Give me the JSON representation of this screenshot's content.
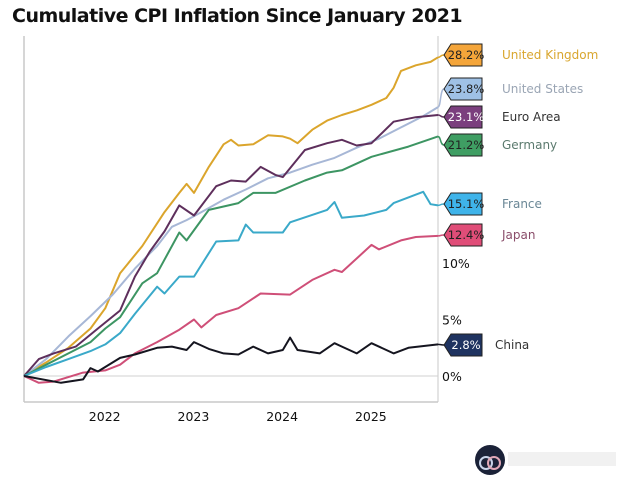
{
  "chart_data": {
    "type": "line",
    "title": "Cumulative CPI Inflation Since January 2021",
    "xlabel": "",
    "ylabel": "",
    "xlim": [
      "2021-01",
      "2025-09"
    ],
    "ylim": [
      -2.3,
      29.5
    ],
    "x_ticks": [
      "2022",
      "2023",
      "2024",
      "2025"
    ],
    "y_ticks": [
      {
        "value": 0,
        "label": "0%"
      },
      {
        "value": 5,
        "label": "5%"
      },
      {
        "value": 10,
        "label": "10%"
      }
    ],
    "grid": false,
    "legend_placement": "right, end-of-line labels",
    "series": [
      {
        "name": "United Kingdom",
        "end_label": "28.2%",
        "color": "#dba52c",
        "box_color": "#f4a53a",
        "text_color": "#d9a62e",
        "points": [
          [
            "2021-01",
            0
          ],
          [
            "2021-04",
            1.2
          ],
          [
            "2021-07",
            2.5
          ],
          [
            "2021-10",
            4.2
          ],
          [
            "2021-12",
            6.0
          ],
          [
            "2022-02",
            9.1
          ],
          [
            "2022-05",
            11.5
          ],
          [
            "2022-08",
            14.5
          ],
          [
            "2022-10",
            16.2
          ],
          [
            "2022-11",
            17.0
          ],
          [
            "2022-12",
            16.2
          ],
          [
            "2023-02",
            18.5
          ],
          [
            "2023-04",
            20.5
          ],
          [
            "2023-05",
            20.9
          ],
          [
            "2023-06",
            20.4
          ],
          [
            "2023-08",
            20.5
          ],
          [
            "2023-10",
            21.3
          ],
          [
            "2023-12",
            21.2
          ],
          [
            "2024-01",
            21.0
          ],
          [
            "2024-02",
            20.6
          ],
          [
            "2024-04",
            21.8
          ],
          [
            "2024-06",
            22.6
          ],
          [
            "2024-08",
            23.1
          ],
          [
            "2024-10",
            23.5
          ],
          [
            "2024-12",
            24.0
          ],
          [
            "2025-02",
            24.6
          ],
          [
            "2025-03",
            25.5
          ],
          [
            "2025-04",
            27.0
          ],
          [
            "2025-06",
            27.5
          ],
          [
            "2025-08",
            27.8
          ],
          [
            "2025-09",
            28.2
          ]
        ]
      },
      {
        "name": "United States",
        "end_label": "23.8%",
        "color": "#a7b7d6",
        "box_color": "#9fc1e6",
        "text_color": "#9aa5b4",
        "points": [
          [
            "2021-01",
            0
          ],
          [
            "2021-04",
            1.5
          ],
          [
            "2021-07",
            3.5
          ],
          [
            "2021-10",
            5.3
          ],
          [
            "2022-01",
            7.2
          ],
          [
            "2022-04",
            9.5
          ],
          [
            "2022-07",
            11.5
          ],
          [
            "2022-09",
            13.2
          ],
          [
            "2022-11",
            13.8
          ],
          [
            "2023-01",
            14.5
          ],
          [
            "2023-04",
            15.6
          ],
          [
            "2023-07",
            16.5
          ],
          [
            "2023-10",
            17.5
          ],
          [
            "2024-01",
            18.0
          ],
          [
            "2024-04",
            18.7
          ],
          [
            "2024-07",
            19.3
          ],
          [
            "2024-10",
            20.2
          ],
          [
            "2025-01",
            21.0
          ],
          [
            "2025-04",
            22.0
          ],
          [
            "2025-07",
            23.0
          ],
          [
            "2025-09",
            23.8
          ]
        ]
      },
      {
        "name": "Euro Area",
        "end_label": "23.1%",
        "color": "#5e2f5c",
        "box_color": "#7b3f7e",
        "text_color": "#333333",
        "points": [
          [
            "2021-01",
            0
          ],
          [
            "2021-03",
            1.5
          ],
          [
            "2021-05",
            2.0
          ],
          [
            "2021-08",
            2.6
          ],
          [
            "2021-11",
            4.2
          ],
          [
            "2022-02",
            5.8
          ],
          [
            "2022-04",
            8.8
          ],
          [
            "2022-06",
            11.0
          ],
          [
            "2022-08",
            12.8
          ],
          [
            "2022-10",
            15.1
          ],
          [
            "2022-12",
            14.2
          ],
          [
            "2023-03",
            16.8
          ],
          [
            "2023-05",
            17.3
          ],
          [
            "2023-07",
            17.2
          ],
          [
            "2023-09",
            18.5
          ],
          [
            "2023-11",
            17.8
          ],
          [
            "2023-12",
            17.6
          ],
          [
            "2024-03",
            20.0
          ],
          [
            "2024-06",
            20.6
          ],
          [
            "2024-08",
            20.9
          ],
          [
            "2024-10",
            20.4
          ],
          [
            "2024-12",
            20.6
          ],
          [
            "2025-03",
            22.5
          ],
          [
            "2025-06",
            22.9
          ],
          [
            "2025-09",
            23.1
          ]
        ]
      },
      {
        "name": "Germany",
        "end_label": "21.2%",
        "color": "#3d9563",
        "box_color": "#3f9e63",
        "text_color": "#5b7a6e",
        "points": [
          [
            "2021-01",
            0
          ],
          [
            "2021-04",
            1.0
          ],
          [
            "2021-07",
            2.0
          ],
          [
            "2021-10",
            3.0
          ],
          [
            "2021-12",
            4.2
          ],
          [
            "2022-02",
            5.2
          ],
          [
            "2022-05",
            8.2
          ],
          [
            "2022-07",
            9.1
          ],
          [
            "2022-10",
            12.7
          ],
          [
            "2022-11",
            12.0
          ],
          [
            "2023-02",
            14.7
          ],
          [
            "2023-06",
            15.3
          ],
          [
            "2023-08",
            16.2
          ],
          [
            "2023-11",
            16.2
          ],
          [
            "2024-03",
            17.3
          ],
          [
            "2024-06",
            18.0
          ],
          [
            "2024-08",
            18.2
          ],
          [
            "2024-12",
            19.4
          ],
          [
            "2025-05",
            20.3
          ],
          [
            "2025-09",
            21.2
          ]
        ]
      },
      {
        "name": "France",
        "end_label": "15.1%",
        "color": "#3aa9c9",
        "box_color": "#3fb4ea",
        "text_color": "#6a8796",
        "points": [
          [
            "2021-01",
            0
          ],
          [
            "2021-04",
            0.8
          ],
          [
            "2021-07",
            1.5
          ],
          [
            "2021-10",
            2.2
          ],
          [
            "2021-12",
            2.8
          ],
          [
            "2022-02",
            3.8
          ],
          [
            "2022-04",
            5.5
          ],
          [
            "2022-07",
            7.9
          ],
          [
            "2022-08",
            7.3
          ],
          [
            "2022-10",
            8.8
          ],
          [
            "2022-12",
            8.8
          ],
          [
            "2023-03",
            11.9
          ],
          [
            "2023-06",
            12.0
          ],
          [
            "2023-07",
            13.4
          ],
          [
            "2023-08",
            12.7
          ],
          [
            "2023-12",
            12.7
          ],
          [
            "2024-01",
            13.6
          ],
          [
            "2024-06",
            14.7
          ],
          [
            "2024-07",
            15.4
          ],
          [
            "2024-08",
            14.0
          ],
          [
            "2024-11",
            14.2
          ],
          [
            "2025-02",
            14.7
          ],
          [
            "2025-03",
            15.3
          ],
          [
            "2025-07",
            16.3
          ],
          [
            "2025-08",
            15.2
          ],
          [
            "2025-09",
            15.1
          ]
        ]
      },
      {
        "name": "Japan",
        "end_label": "12.4%",
        "color": "#cf4f78",
        "box_color": "#e04d78",
        "text_color": "#8a4d6a",
        "points": [
          [
            "2021-01",
            0
          ],
          [
            "2021-03",
            -0.6
          ],
          [
            "2021-05",
            -0.5
          ],
          [
            "2021-09",
            0.3
          ],
          [
            "2021-12",
            0.5
          ],
          [
            "2022-02",
            1.0
          ],
          [
            "2022-04",
            2.0
          ],
          [
            "2022-07",
            3.0
          ],
          [
            "2022-10",
            4.1
          ],
          [
            "2022-12",
            5.0
          ],
          [
            "2023-01",
            4.3
          ],
          [
            "2023-03",
            5.4
          ],
          [
            "2023-06",
            6.0
          ],
          [
            "2023-09",
            7.3
          ],
          [
            "2024-01",
            7.2
          ],
          [
            "2024-04",
            8.5
          ],
          [
            "2024-07",
            9.4
          ],
          [
            "2024-08",
            9.2
          ],
          [
            "2024-12",
            11.6
          ],
          [
            "2025-01",
            11.2
          ],
          [
            "2025-04",
            12.0
          ],
          [
            "2025-06",
            12.3
          ],
          [
            "2025-09",
            12.4
          ]
        ]
      },
      {
        "name": "China",
        "end_label": "2.8%",
        "color": "#15151f",
        "box_color": "#1f3360",
        "text_color": "#333333",
        "points": [
          [
            "2021-01",
            0
          ],
          [
            "2021-06",
            -0.6
          ],
          [
            "2021-09",
            -0.3
          ],
          [
            "2021-10",
            0.7
          ],
          [
            "2021-11",
            0.4
          ],
          [
            "2022-02",
            1.6
          ],
          [
            "2022-04",
            1.9
          ],
          [
            "2022-07",
            2.5
          ],
          [
            "2022-09",
            2.6
          ],
          [
            "2022-11",
            2.3
          ],
          [
            "2022-12",
            3.0
          ],
          [
            "2023-02",
            2.4
          ],
          [
            "2023-04",
            2.0
          ],
          [
            "2023-06",
            1.9
          ],
          [
            "2023-08",
            2.6
          ],
          [
            "2023-10",
            2.0
          ],
          [
            "2023-12",
            2.3
          ],
          [
            "2024-01",
            3.4
          ],
          [
            "2024-02",
            2.3
          ],
          [
            "2024-05",
            2.0
          ],
          [
            "2024-07",
            2.9
          ],
          [
            "2024-08",
            2.6
          ],
          [
            "2024-10",
            2.0
          ],
          [
            "2024-12",
            2.9
          ],
          [
            "2025-02",
            2.3
          ],
          [
            "2025-03",
            2.0
          ],
          [
            "2025-05",
            2.5
          ],
          [
            "2025-09",
            2.8
          ]
        ]
      }
    ]
  }
}
